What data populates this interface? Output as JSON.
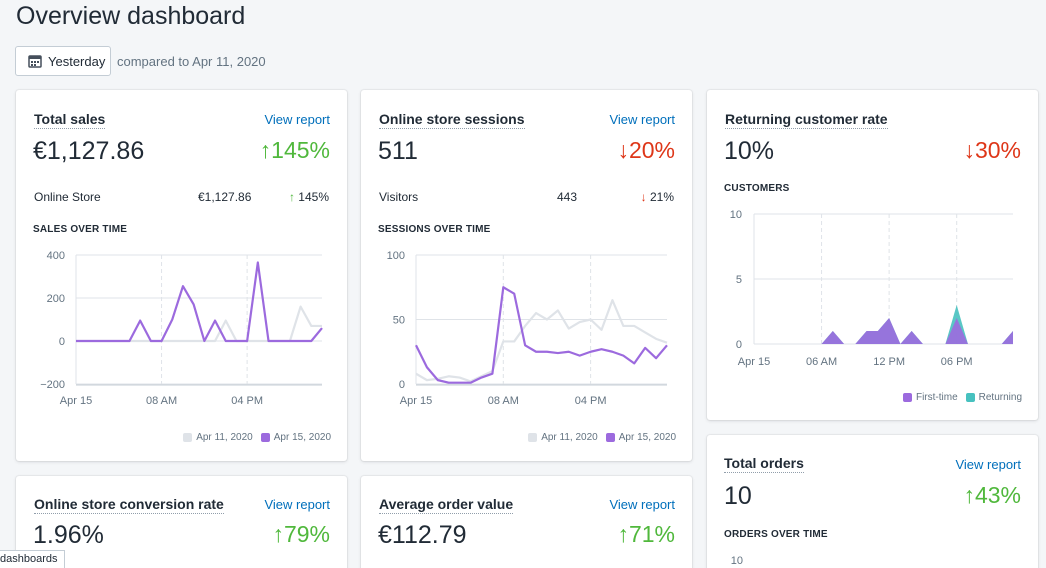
{
  "page": {
    "title": "Overview dashboard"
  },
  "date": {
    "button_label": "Yesterday",
    "compare_text": "compared to Apr 11, 2020"
  },
  "cards": {
    "total_sales": {
      "title": "Total sales",
      "view_report": "View report",
      "value": "€1,127.86",
      "change": "145%",
      "change_dir": "up",
      "row_label": "Online Store",
      "row_value": "€1,127.86",
      "row_change": "145%",
      "section": "SALES OVER TIME"
    },
    "sessions": {
      "title": "Online store sessions",
      "view_report": "View report",
      "value": "511",
      "change": "20%",
      "change_dir": "down",
      "row_label": "Visitors",
      "row_value": "443",
      "row_change": "21%",
      "section": "SESSIONS OVER TIME"
    },
    "returning": {
      "title": "Returning customer rate",
      "value": "10%",
      "change": "30%",
      "change_dir": "down",
      "section": "CUSTOMERS"
    },
    "total_orders": {
      "title": "Total orders",
      "view_report": "View report",
      "value": "10",
      "change": "43%",
      "change_dir": "up",
      "section": "ORDERS OVER TIME"
    },
    "conversion": {
      "title": "Online store conversion rate",
      "view_report": "View report",
      "value": "1.96%",
      "change": "79%",
      "change_dir": "up"
    },
    "aov": {
      "title": "Average order value",
      "view_report": "View report",
      "value": "€112.79",
      "change": "71%",
      "change_dir": "up"
    }
  },
  "status_bar": {
    "text": "dashboards"
  },
  "colors": {
    "current": "#9c6ade",
    "previous": "#dfe3e8",
    "returning": "#47c1bf",
    "up": "#50b83c",
    "down": "#de3618",
    "link": "#006fbb"
  },
  "chart_data": [
    {
      "type": "line",
      "name": "sales-over-time",
      "x_ticks": [
        "Apr 15",
        "08 AM",
        "04 PM"
      ],
      "y_ticks": [
        "400",
        "200",
        "0",
        "−200"
      ],
      "ylim": [
        -200,
        400
      ],
      "x": [
        0,
        1,
        2,
        3,
        4,
        5,
        6,
        7,
        8,
        9,
        10,
        11,
        12,
        13,
        14,
        15,
        16,
        17,
        18,
        19,
        20,
        21,
        22,
        23
      ],
      "series": [
        {
          "name": "Apr 11, 2020",
          "values": [
            0,
            0,
            0,
            0,
            0,
            0,
            0,
            0,
            0,
            0,
            0,
            0,
            0,
            0,
            95,
            0,
            0,
            0,
            0,
            0,
            0,
            160,
            70,
            70
          ]
        },
        {
          "name": "Apr 15, 2020",
          "values": [
            0,
            0,
            0,
            0,
            0,
            0,
            95,
            0,
            0,
            100,
            255,
            170,
            0,
            95,
            0,
            0,
            0,
            365,
            0,
            0,
            0,
            0,
            0,
            60
          ]
        }
      ]
    },
    {
      "type": "line",
      "name": "sessions-over-time",
      "x_ticks": [
        "Apr 15",
        "08 AM",
        "04 PM"
      ],
      "y_ticks": [
        "100",
        "50",
        "0"
      ],
      "ylim": [
        0,
        100
      ],
      "x": [
        0,
        1,
        2,
        3,
        4,
        5,
        6,
        7,
        8,
        9,
        10,
        11,
        12,
        13,
        14,
        15,
        16,
        17,
        18,
        19,
        20,
        21,
        22,
        23
      ],
      "series": [
        {
          "name": "Apr 11, 2020",
          "values": [
            8,
            3,
            4,
            6,
            5,
            2,
            6,
            10,
            33,
            33,
            45,
            55,
            50,
            57,
            43,
            48,
            50,
            42,
            65,
            45,
            45,
            40,
            35,
            32
          ]
        },
        {
          "name": "Apr 15, 2020",
          "values": [
            30,
            13,
            3,
            1,
            1,
            1,
            5,
            8,
            75,
            70,
            30,
            25,
            25,
            24,
            25,
            22,
            25,
            27,
            25,
            22,
            16,
            28,
            20,
            30
          ]
        }
      ]
    },
    {
      "type": "area",
      "name": "customers",
      "x_ticks": [
        "Apr 15",
        "06 AM",
        "12 PM",
        "06 PM"
      ],
      "y_ticks": [
        "10",
        "5",
        "0"
      ],
      "ylim": [
        0,
        10
      ],
      "x": [
        0,
        1,
        2,
        3,
        4,
        5,
        6,
        7,
        8,
        9,
        10,
        11,
        12,
        13,
        14,
        15,
        16,
        17,
        18,
        19,
        20,
        21,
        22,
        23
      ],
      "series": [
        {
          "name": "First-time",
          "values": [
            0,
            0,
            0,
            0,
            0,
            0,
            0,
            1,
            0,
            0,
            1,
            1,
            2,
            0,
            1,
            0,
            0,
            0,
            2,
            0,
            0,
            0,
            0,
            1
          ]
        },
        {
          "name": "Returning",
          "values": [
            0,
            0,
            0,
            0,
            0,
            0,
            0,
            0,
            0,
            0,
            0,
            0,
            0,
            0,
            0,
            0,
            0,
            0,
            1,
            0,
            0,
            0,
            0,
            0
          ]
        }
      ]
    },
    {
      "type": "line",
      "name": "orders-over-time",
      "y_ticks": [
        "10"
      ],
      "ylim": [
        0,
        10
      ]
    }
  ]
}
